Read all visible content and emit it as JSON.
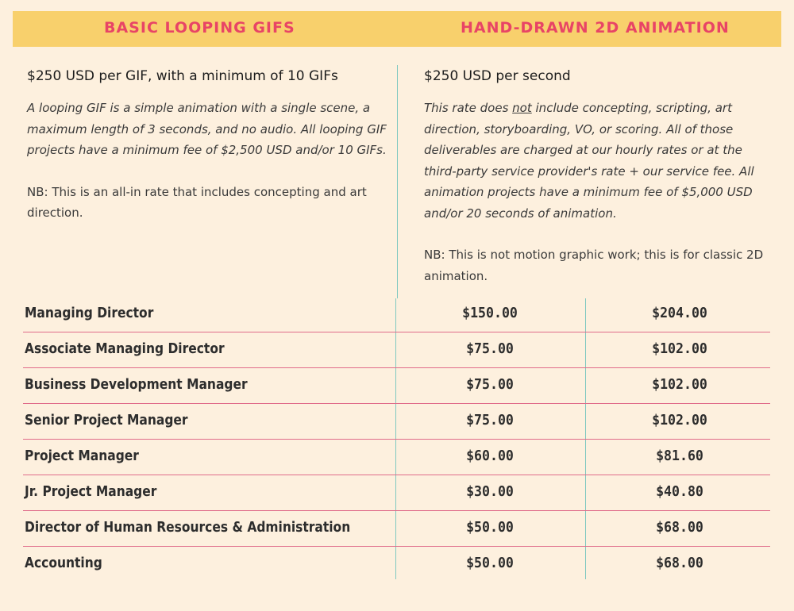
{
  "header": {
    "left_title": "BASIC LOOPING GIFS",
    "right_title": "HAND-DRAWN 2D ANIMATION"
  },
  "looping_gifs": {
    "price": "$250 USD per GIF, with a minimum of 10 GIFs",
    "description": "A looping GIF is a simple animation with a single scene, a maximum length of 3 seconds, and no audio. All looping GIF projects have a minimum fee of $2,500 USD and/or 10 GIFs.",
    "note": "NB: This is an all-in rate that includes concepting and art direction."
  },
  "animation": {
    "price": "$250 USD per second",
    "description_prefix": "This rate does ",
    "description_emphasis": "not",
    "description_rest": " include concepting, scripting, art direction, storyboarding, VO, or scoring. All of those deliverables are charged at our hourly rates or at the third-party service provider's rate + our service fee. All animation projects have a minimum fee of $5,000 USD and/or 20 seconds of animation.",
    "note": "NB: This is not motion graphic work; this is for classic 2D animation."
  },
  "rates": [
    {
      "role": "Managing Director",
      "gif_rate": "$150.00",
      "animation_rate": "$204.00"
    },
    {
      "role": "Associate Managing Director",
      "gif_rate": "$75.00",
      "animation_rate": "$102.00"
    },
    {
      "role": "Business Development Manager",
      "gif_rate": "$75.00",
      "animation_rate": "$102.00"
    },
    {
      "role": "Senior Project Manager",
      "gif_rate": "$75.00",
      "animation_rate": "$102.00"
    },
    {
      "role": "Project Manager",
      "gif_rate": "$60.00",
      "animation_rate": "$81.60"
    },
    {
      "role": "Jr. Project Manager",
      "gif_rate": "$30.00",
      "animation_rate": "$40.80"
    },
    {
      "role": "Director of Human Resources & Administration",
      "gif_rate": "$50.00",
      "animation_rate": "$68.00"
    },
    {
      "role": "Accounting",
      "gif_rate": "$50.00",
      "animation_rate": "$68.00"
    }
  ],
  "colors": {
    "background": "#fdf0de",
    "header_band": "#f8d06c",
    "header_text": "#e84466",
    "row_divider": "#e06c8a",
    "column_divider": "#7fc8c0"
  }
}
